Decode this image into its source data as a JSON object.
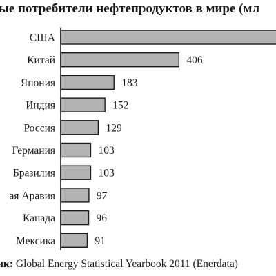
{
  "chart_data": {
    "type": "bar",
    "orientation": "horizontal",
    "title": "ые потребители нефтепродуктов в мире (мл",
    "categories": [
      "США",
      "Китай",
      "Япония",
      "Индия",
      "Россия",
      "Германия",
      "Бразилия",
      "ая Аравия",
      "Канада",
      "Мексика"
    ],
    "values": [
      null,
      406,
      183,
      152,
      129,
      103,
      103,
      97,
      96,
      91
    ],
    "value_labels": [
      "",
      "406",
      "183",
      "152",
      "129",
      "103",
      "103",
      "97",
      "96",
      "91"
    ],
    "xlim": [
      0,
      410
    ],
    "grid": false,
    "legend": "none",
    "bar_color": "#b3b3b3",
    "edge_color": "#1a1a1a"
  },
  "source": {
    "label": "ик:",
    "text": " Global Energy Statistical Yearbook 2011 (Enerdata)"
  }
}
